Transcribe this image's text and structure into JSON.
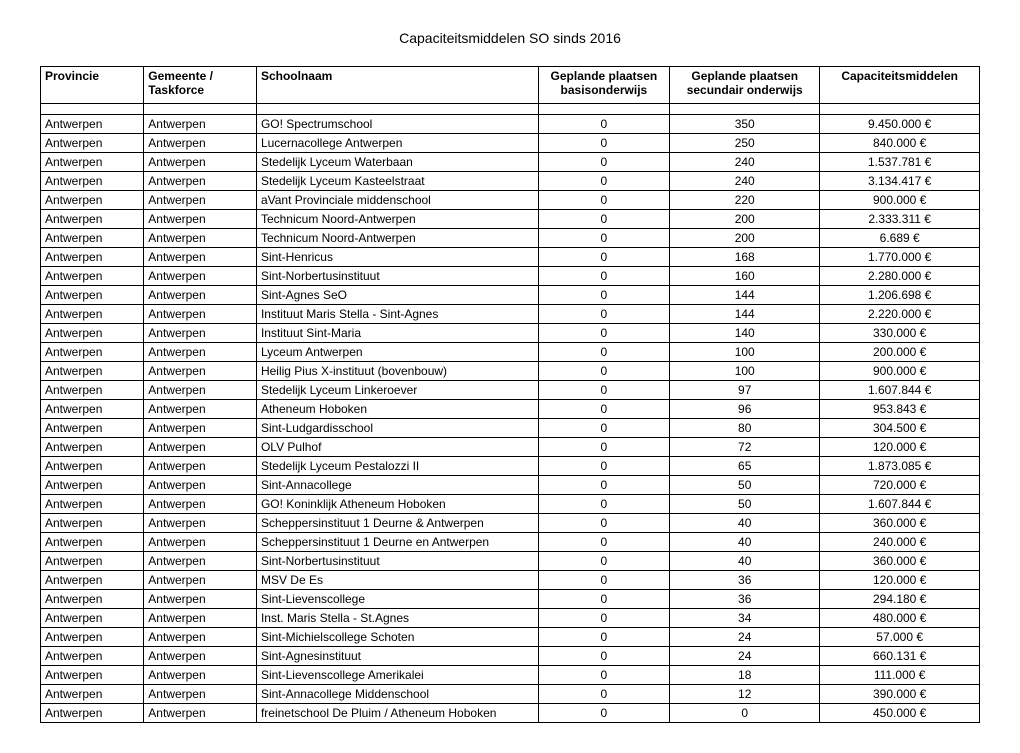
{
  "title": "Capaciteitsmiddelen SO sinds 2016",
  "columns": [
    {
      "label": "Provincie",
      "align": "left"
    },
    {
      "label": "Gemeente / Taskforce",
      "align": "left"
    },
    {
      "label": "Schoolnaam",
      "align": "left"
    },
    {
      "label": "Geplande plaatsen basisonderwijs",
      "align": "center"
    },
    {
      "label": "Geplande plaatsen secundair onderwijs",
      "align": "center"
    },
    {
      "label": "Capaciteitsmiddelen",
      "align": "center"
    }
  ],
  "rows": [
    [
      "Antwerpen",
      "Antwerpen",
      "GO! Spectrumschool",
      "0",
      "350",
      "9.450.000 €"
    ],
    [
      "Antwerpen",
      "Antwerpen",
      "Lucernacollege Antwerpen",
      "0",
      "250",
      "840.000 €"
    ],
    [
      "Antwerpen",
      "Antwerpen",
      "Stedelijk Lyceum Waterbaan",
      "0",
      "240",
      "1.537.781 €"
    ],
    [
      "Antwerpen",
      "Antwerpen",
      "Stedelijk Lyceum Kasteelstraat",
      "0",
      "240",
      "3.134.417 €"
    ],
    [
      "Antwerpen",
      "Antwerpen",
      "aVant Provinciale middenschool",
      "0",
      "220",
      "900.000 €"
    ],
    [
      "Antwerpen",
      "Antwerpen",
      "Technicum Noord-Antwerpen",
      "0",
      "200",
      "2.333.311 €"
    ],
    [
      "Antwerpen",
      "Antwerpen",
      "Technicum Noord-Antwerpen",
      "0",
      "200",
      "6.689 €"
    ],
    [
      "Antwerpen",
      "Antwerpen",
      "Sint-Henricus",
      "0",
      "168",
      "1.770.000 €"
    ],
    [
      "Antwerpen",
      "Antwerpen",
      "Sint-Norbertusinstituut",
      "0",
      "160",
      "2.280.000 €"
    ],
    [
      "Antwerpen",
      "Antwerpen",
      "Sint-Agnes SeO",
      "0",
      "144",
      "1.206.698 €"
    ],
    [
      "Antwerpen",
      "Antwerpen",
      "Instituut Maris Stella - Sint-Agnes",
      "0",
      "144",
      "2.220.000 €"
    ],
    [
      "Antwerpen",
      "Antwerpen",
      "Instituut Sint-Maria",
      "0",
      "140",
      "330.000 €"
    ],
    [
      "Antwerpen",
      "Antwerpen",
      "Lyceum Antwerpen",
      "0",
      "100",
      "200.000 €"
    ],
    [
      "Antwerpen",
      "Antwerpen",
      "Heilig Pius X-instituut (bovenbouw)",
      "0",
      "100",
      "900.000 €"
    ],
    [
      "Antwerpen",
      "Antwerpen",
      "Stedelijk Lyceum Linkeroever",
      "0",
      "97",
      "1.607.844 €"
    ],
    [
      "Antwerpen",
      "Antwerpen",
      "Atheneum Hoboken",
      "0",
      "96",
      "953.843 €"
    ],
    [
      "Antwerpen",
      "Antwerpen",
      "Sint-Ludgardisschool",
      "0",
      "80",
      "304.500 €"
    ],
    [
      "Antwerpen",
      "Antwerpen",
      "OLV Pulhof",
      "0",
      "72",
      "120.000 €"
    ],
    [
      "Antwerpen",
      "Antwerpen",
      "Stedelijk Lyceum Pestalozzi II",
      "0",
      "65",
      "1.873.085 €"
    ],
    [
      "Antwerpen",
      "Antwerpen",
      "Sint-Annacollege",
      "0",
      "50",
      "720.000 €"
    ],
    [
      "Antwerpen",
      "Antwerpen",
      "GO! Koninklijk Atheneum Hoboken",
      "0",
      "50",
      "1.607.844 €"
    ],
    [
      "Antwerpen",
      "Antwerpen",
      "Scheppersinstituut 1 Deurne & Antwerpen",
      "0",
      "40",
      "360.000 €"
    ],
    [
      "Antwerpen",
      "Antwerpen",
      "Scheppersinstituut 1 Deurne en Antwerpen",
      "0",
      "40",
      "240.000 €"
    ],
    [
      "Antwerpen",
      "Antwerpen",
      "Sint-Norbertusinstituut",
      "0",
      "40",
      "360.000 €"
    ],
    [
      "Antwerpen",
      "Antwerpen",
      "MSV De Es",
      "0",
      "36",
      "120.000 €"
    ],
    [
      "Antwerpen",
      "Antwerpen",
      "Sint-Lievenscollege",
      "0",
      "36",
      "294.180 €"
    ],
    [
      "Antwerpen",
      "Antwerpen",
      "Inst. Maris Stella - St.Agnes",
      "0",
      "34",
      "480.000 €"
    ],
    [
      "Antwerpen",
      "Antwerpen",
      "Sint-Michielscollege Schoten",
      "0",
      "24",
      "57.000 €"
    ],
    [
      "Antwerpen",
      "Antwerpen",
      "Sint-Agnesinstituut",
      "0",
      "24",
      "660.131 €"
    ],
    [
      "Antwerpen",
      "Antwerpen",
      "Sint-Lievenscollege Amerikalei",
      "0",
      "18",
      "111.000 €"
    ],
    [
      "Antwerpen",
      "Antwerpen",
      "Sint-Annacollege Middenschool",
      "0",
      "12",
      "390.000 €"
    ],
    [
      "Antwerpen",
      "Antwerpen",
      "freinetschool De Pluim / Atheneum Hoboken",
      "0",
      "0",
      "450.000 €"
    ]
  ]
}
